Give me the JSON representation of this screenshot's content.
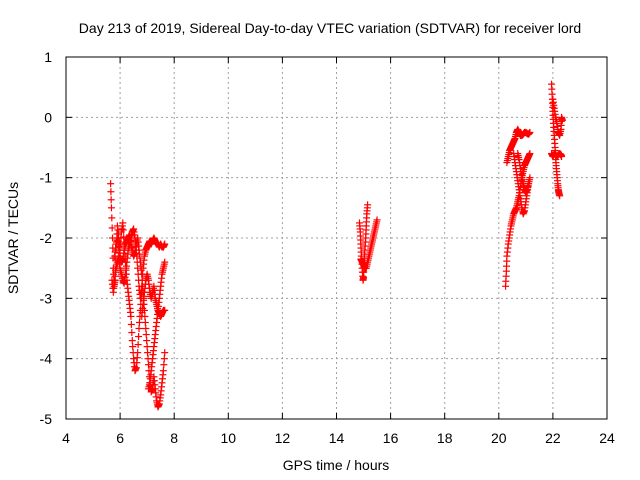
{
  "chart_data": {
    "type": "scatter",
    "title": "Day 213 of 2019, Sidereal Day-to-day VTEC variation (SDTVAR) for receiver lord",
    "xlabel": "GPS time / hours",
    "ylabel": "SDTVAR / TECUs",
    "xlim": [
      4,
      24
    ],
    "ylim": [
      -5,
      1
    ],
    "xticks": [
      "4",
      "6",
      "8",
      "10",
      "12",
      "14",
      "16",
      "18",
      "20",
      "22",
      "24"
    ],
    "yticks": [
      "-5",
      "-4",
      "-3",
      "-2",
      "-1",
      "0",
      "1"
    ],
    "grid": true,
    "marker": "+",
    "color": "#ff0000",
    "series": [
      {
        "name": "SDTVAR",
        "segments": [
          [
            [
              5.65,
              -1.1
            ],
            [
              5.68,
              -1.5
            ],
            [
              5.72,
              -2.0
            ],
            [
              5.75,
              -2.5
            ],
            [
              5.78,
              -2.8
            ],
            [
              5.82,
              -2.7
            ],
            [
              5.85,
              -2.2
            ],
            [
              5.9,
              -1.8
            ],
            [
              5.95,
              -2.0
            ],
            [
              6.0,
              -2.2
            ],
            [
              6.05,
              -1.9
            ],
            [
              6.1,
              -1.75
            ],
            [
              6.15,
              -2.1
            ],
            [
              6.2,
              -2.4
            ],
            [
              6.25,
              -2.7
            ],
            [
              6.3,
              -2.9
            ],
            [
              6.35,
              -3.1
            ],
            [
              6.4,
              -3.3
            ],
            [
              6.45,
              -3.7
            ],
            [
              6.5,
              -4.0
            ],
            [
              6.55,
              -4.2
            ],
            [
              6.6,
              -4.15
            ],
            [
              6.65,
              -3.9
            ],
            [
              6.7,
              -3.5
            ],
            [
              6.75,
              -3.2
            ],
            [
              6.8,
              -2.9
            ]
          ],
          [
            [
              5.7,
              -2.7
            ],
            [
              5.75,
              -2.9
            ],
            [
              5.8,
              -2.7
            ],
            [
              5.85,
              -2.5
            ],
            [
              5.9,
              -2.4
            ],
            [
              5.95,
              -2.3
            ],
            [
              6.0,
              -2.5
            ],
            [
              6.05,
              -2.6
            ],
            [
              6.1,
              -2.7
            ],
            [
              6.15,
              -2.75
            ],
            [
              6.2,
              -2.6
            ],
            [
              6.25,
              -2.4
            ],
            [
              6.3,
              -2.2
            ],
            [
              6.35,
              -2.1
            ],
            [
              6.4,
              -2.0
            ],
            [
              6.45,
              -1.9
            ],
            [
              6.5,
              -1.85
            ],
            [
              6.55,
              -2.0
            ],
            [
              6.6,
              -2.2
            ],
            [
              6.65,
              -2.5
            ],
            [
              6.7,
              -2.8
            ],
            [
              6.75,
              -3.0
            ],
            [
              6.8,
              -2.8
            ],
            [
              6.85,
              -2.5
            ],
            [
              6.9,
              -2.3
            ],
            [
              6.95,
              -2.2
            ],
            [
              7.0,
              -2.15
            ],
            [
              7.05,
              -2.1
            ],
            [
              7.1,
              -2.05
            ],
            [
              7.15,
              -2.1
            ],
            [
              7.2,
              -2.05
            ],
            [
              7.25,
              -2.0
            ],
            [
              7.3,
              -2.05
            ],
            [
              7.35,
              -2.1
            ],
            [
              7.4,
              -2.1
            ],
            [
              7.45,
              -2.15
            ],
            [
              7.5,
              -2.1
            ],
            [
              7.55,
              -2.15
            ],
            [
              7.6,
              -2.15
            ],
            [
              7.65,
              -2.1
            ]
          ],
          [
            [
              5.8,
              -2.3
            ],
            [
              5.85,
              -2.1
            ],
            [
              5.9,
              -2.0
            ],
            [
              5.95,
              -2.15
            ],
            [
              6.0,
              -2.3
            ],
            [
              6.05,
              -2.4
            ],
            [
              6.1,
              -2.35
            ],
            [
              6.15,
              -2.2
            ],
            [
              6.2,
              -2.1
            ],
            [
              6.25,
              -2.05
            ],
            [
              6.3,
              -2.0
            ],
            [
              6.35,
              -1.95
            ],
            [
              6.4,
              -2.1
            ],
            [
              6.45,
              -2.2
            ],
            [
              6.5,
              -2.3
            ],
            [
              6.55,
              -2.25
            ],
            [
              6.6,
              -2.1
            ],
            [
              6.65,
              -2.0
            ],
            [
              6.7,
              -2.2
            ],
            [
              6.75,
              -2.4
            ],
            [
              6.8,
              -2.6
            ],
            [
              6.85,
              -2.9
            ],
            [
              6.9,
              -3.2
            ],
            [
              6.95,
              -3.5
            ],
            [
              7.0,
              -3.8
            ],
            [
              7.05,
              -4.1
            ],
            [
              7.1,
              -4.4
            ],
            [
              7.15,
              -4.55
            ],
            [
              7.2,
              -4.5
            ],
            [
              7.25,
              -4.3
            ],
            [
              7.3,
              -4.5
            ],
            [
              7.35,
              -4.7
            ],
            [
              7.4,
              -4.8
            ],
            [
              7.45,
              -4.75
            ],
            [
              7.5,
              -4.6
            ],
            [
              7.55,
              -4.4
            ],
            [
              7.6,
              -4.2
            ],
            [
              7.65,
              -3.9
            ]
          ],
          [
            [
              6.8,
              -3.3
            ],
            [
              6.85,
              -3.1
            ],
            [
              6.9,
              -2.9
            ],
            [
              6.95,
              -2.7
            ],
            [
              7.0,
              -2.6
            ],
            [
              7.05,
              -2.7
            ],
            [
              7.1,
              -2.9
            ],
            [
              7.15,
              -3.0
            ],
            [
              7.2,
              -2.9
            ],
            [
              7.25,
              -2.8
            ],
            [
              7.3,
              -3.0
            ],
            [
              7.35,
              -3.1
            ],
            [
              7.4,
              -3.2
            ],
            [
              7.45,
              -3.25
            ],
            [
              7.5,
              -3.3
            ],
            [
              7.55,
              -3.25
            ],
            [
              7.6,
              -3.2
            ],
            [
              7.65,
              -3.2
            ]
          ],
          [
            [
              7.05,
              -4.5
            ],
            [
              7.1,
              -4.4
            ],
            [
              7.15,
              -4.2
            ],
            [
              7.2,
              -4.0
            ],
            [
              7.25,
              -3.8
            ],
            [
              7.3,
              -3.6
            ],
            [
              7.35,
              -3.4
            ],
            [
              7.4,
              -3.2
            ],
            [
              7.45,
              -3.0
            ],
            [
              7.5,
              -2.8
            ],
            [
              7.55,
              -2.6
            ],
            [
              7.6,
              -2.5
            ],
            [
              7.65,
              -2.4
            ]
          ],
          [
            [
              14.85,
              -1.75
            ],
            [
              14.88,
              -1.9
            ],
            [
              14.9,
              -2.1
            ],
            [
              14.92,
              -2.3
            ],
            [
              14.95,
              -2.5
            ],
            [
              14.98,
              -2.7
            ],
            [
              15.0,
              -2.65
            ],
            [
              15.02,
              -2.4
            ],
            [
              15.05,
              -2.2
            ],
            [
              15.08,
              -2.0
            ],
            [
              15.1,
              -1.8
            ],
            [
              15.12,
              -1.6
            ],
            [
              15.15,
              -1.45
            ]
          ],
          [
            [
              14.9,
              -2.35
            ],
            [
              14.95,
              -2.4
            ],
            [
              15.0,
              -2.45
            ],
            [
              15.05,
              -2.5
            ],
            [
              15.1,
              -2.5
            ],
            [
              15.15,
              -2.4
            ],
            [
              15.2,
              -2.3
            ],
            [
              15.25,
              -2.2
            ],
            [
              15.3,
              -2.1
            ],
            [
              15.35,
              -2.0
            ],
            [
              15.4,
              -1.9
            ],
            [
              15.45,
              -1.8
            ],
            [
              15.5,
              -1.7
            ]
          ],
          [
            [
              20.25,
              -2.8
            ],
            [
              20.28,
              -2.55
            ],
            [
              20.3,
              -2.3
            ],
            [
              20.35,
              -2.1
            ],
            [
              20.4,
              -1.95
            ],
            [
              20.45,
              -1.8
            ],
            [
              20.5,
              -1.7
            ],
            [
              20.55,
              -1.6
            ],
            [
              20.6,
              -1.55
            ],
            [
              20.65,
              -1.5
            ],
            [
              20.7,
              -1.4
            ],
            [
              20.75,
              -1.3
            ],
            [
              20.8,
              -1.15
            ],
            [
              20.85,
              -1.0
            ],
            [
              20.9,
              -0.9
            ],
            [
              20.95,
              -0.8
            ],
            [
              21.0,
              -0.75
            ],
            [
              21.05,
              -0.7
            ],
            [
              21.1,
              -0.65
            ],
            [
              21.15,
              -0.6
            ]
          ],
          [
            [
              20.3,
              -0.75
            ],
            [
              20.35,
              -0.65
            ],
            [
              20.4,
              -0.55
            ],
            [
              20.45,
              -0.5
            ],
            [
              20.5,
              -0.45
            ],
            [
              20.55,
              -0.4
            ],
            [
              20.6,
              -0.35
            ],
            [
              20.65,
              -0.25
            ],
            [
              20.7,
              -0.2
            ],
            [
              20.75,
              -0.25
            ],
            [
              20.8,
              -0.3
            ],
            [
              20.85,
              -0.3
            ],
            [
              20.9,
              -0.28
            ],
            [
              20.95,
              -0.25
            ],
            [
              21.0,
              -0.25
            ],
            [
              21.05,
              -0.27
            ],
            [
              21.1,
              -0.28
            ],
            [
              21.15,
              -0.25
            ]
          ],
          [
            [
              20.55,
              -0.6
            ],
            [
              20.6,
              -0.75
            ],
            [
              20.65,
              -0.9
            ],
            [
              20.7,
              -1.05
            ],
            [
              20.75,
              -1.2
            ],
            [
              20.8,
              -1.35
            ],
            [
              20.85,
              -1.5
            ],
            [
              20.9,
              -1.6
            ],
            [
              20.95,
              -1.55
            ],
            [
              21.0,
              -1.4
            ],
            [
              21.05,
              -1.25
            ],
            [
              21.1,
              -1.1
            ],
            [
              21.15,
              -1.0
            ]
          ],
          [
            [
              20.7,
              -0.6
            ],
            [
              20.75,
              -0.7
            ],
            [
              20.8,
              -0.85
            ],
            [
              20.85,
              -1.0
            ],
            [
              20.9,
              -1.1
            ],
            [
              20.95,
              -1.2
            ],
            [
              21.0,
              -1.25
            ],
            [
              21.05,
              -1.2
            ],
            [
              21.1,
              -1.1
            ]
          ],
          [
            [
              21.95,
              0.55
            ],
            [
              21.98,
              0.3
            ],
            [
              22.0,
              0.1
            ],
            [
              22.02,
              -0.1
            ],
            [
              22.05,
              -0.3
            ],
            [
              22.08,
              -0.5
            ],
            [
              22.1,
              -0.65
            ],
            [
              22.12,
              -0.8
            ],
            [
              22.15,
              -0.95
            ],
            [
              22.18,
              -1.1
            ],
            [
              22.2,
              -1.2
            ],
            [
              22.22,
              -1.25
            ],
            [
              22.25,
              -1.3
            ]
          ],
          [
            [
              22.0,
              0.3
            ],
            [
              22.05,
              0.15
            ],
            [
              22.1,
              0.0
            ],
            [
              22.15,
              -0.1
            ],
            [
              22.2,
              -0.25
            ],
            [
              22.25,
              -0.3
            ],
            [
              22.3,
              -0.2
            ],
            [
              22.32,
              0.0
            ],
            [
              22.35,
              -0.05
            ]
          ],
          [
            [
              21.95,
              -0.6
            ],
            [
              22.0,
              -0.65
            ],
            [
              22.05,
              -0.6
            ],
            [
              22.1,
              -0.62
            ],
            [
              22.15,
              -0.65
            ],
            [
              22.2,
              -0.62
            ],
            [
              22.25,
              -0.6
            ],
            [
              22.3,
              -0.62
            ],
            [
              22.32,
              -0.65
            ]
          ]
        ]
      }
    ]
  }
}
